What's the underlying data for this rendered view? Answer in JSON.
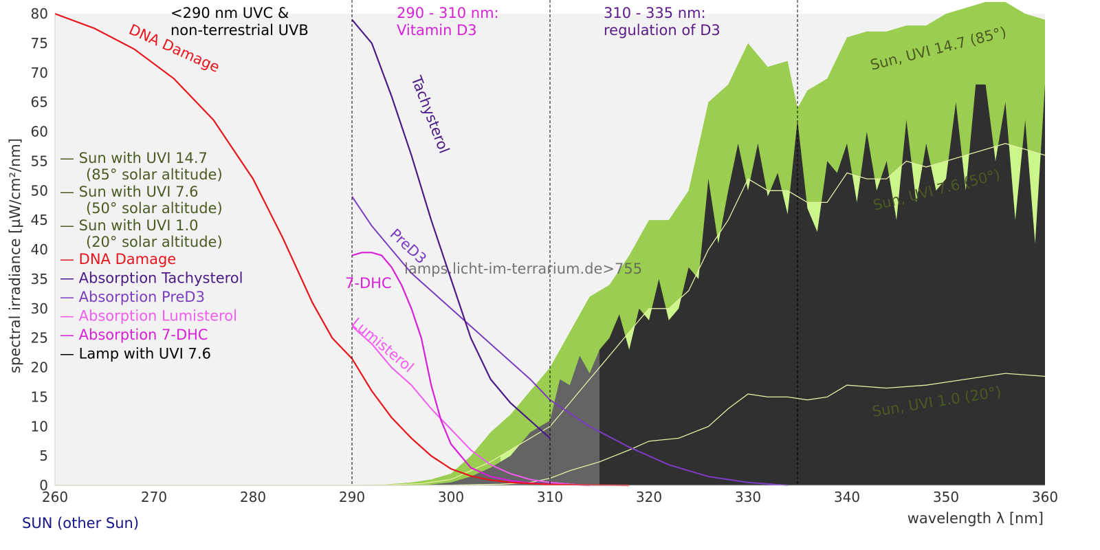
{
  "chart_data": {
    "type": "area",
    "xlabel": "wavelength λ [nm]",
    "ylabel": "spectral irradiance [µW/cm²/nm]",
    "xlim": [
      260,
      360
    ],
    "ylim": [
      0,
      80
    ],
    "x_ticks": [
      260,
      270,
      280,
      290,
      300,
      310,
      320,
      330,
      340,
      350,
      360
    ],
    "y_ticks": [
      0,
      5,
      10,
      15,
      20,
      25,
      30,
      35,
      40,
      45,
      50,
      55,
      60,
      65,
      70,
      75,
      80
    ],
    "grid": "horizontal alternating bands",
    "colors": {
      "sun_high": "#9acd50",
      "sun_mid_fill": "#ccf58c",
      "sun_line": "#e4f0a6",
      "lamp": "#303030",
      "lamp_uvb": "#646464",
      "dna": "#e8141b",
      "tachysterol": "#4a1b86",
      "pred3": "#7b3cc2",
      "lumisterol": "#f25cf0",
      "dhc": "#d81fd8",
      "band_grey": "#f2f2f2",
      "olive_text": "#4a5a22",
      "footer_blue": "#15158a"
    },
    "region_lines": [
      290,
      310,
      335
    ],
    "region_labels": [
      {
        "line1": "<290 nm UVC &",
        "line2": "non-terrestrial UVB",
        "color": "#000000"
      },
      {
        "line1": "290 - 310 nm:",
        "line2": "Vitamin D3",
        "color": "#d622d6"
      },
      {
        "line1": "310 - 335 nm:",
        "line2": "regulation of D3",
        "color": "#5a1a8a"
      }
    ],
    "legend": [
      {
        "text": "— Sun with UVI 14.7",
        "sub": "(85° solar altitude)",
        "color": "#4a5a22"
      },
      {
        "text": "— Sun with UVI 7.6",
        "sub": "(50° solar altitude)",
        "color": "#4a5a22"
      },
      {
        "text": "— Sun with UVI 1.0",
        "sub": "(20° solar altitude)",
        "color": "#4a5a22"
      },
      {
        "text": "— DNA Damage",
        "color": "#e8141b"
      },
      {
        "text": "— Absorption Tachysterol",
        "color": "#4a1b86"
      },
      {
        "text": "— Absorption PreD3",
        "color": "#7b3cc2"
      },
      {
        "text": "— Absorption Lumisterol",
        "color": "#f25cf0"
      },
      {
        "text": "— Absorption 7-DHC",
        "color": "#d81fd8"
      },
      {
        "text": "— Lamp with UVI 7.6",
        "color": "#000000"
      }
    ],
    "curve_labels": {
      "dna": "DNA Damage",
      "tachysterol": "Tachysterol",
      "pred3": "PreD3",
      "dhc": "7-DHC",
      "lumisterol": "Lumisterol",
      "sun_high": "Sun, UVI 14.7 (85°)",
      "sun_mid": "Sun, UVI 7.6 (50°)",
      "sun_low": "Sun, UVI 1.0 (20°)"
    },
    "watermark": "lamps.licht-im-terrarium.de>755",
    "footer": "SUN (other Sun)",
    "series": [
      {
        "key": "sun_high",
        "x": [
          260,
          290,
          293,
          296,
          298,
          300,
          302,
          304,
          306,
          308,
          310,
          312,
          314,
          316,
          318,
          320,
          322,
          324,
          326,
          328,
          330,
          332,
          334,
          335,
          336,
          338,
          340,
          342,
          344,
          346,
          348,
          350,
          352,
          354,
          356,
          358,
          360
        ],
        "y": [
          0,
          0,
          0.1,
          0.5,
          1,
          2,
          5,
          9,
          12,
          16,
          20,
          26,
          32,
          34,
          39,
          45,
          45,
          50,
          65,
          68,
          75,
          71,
          72,
          64,
          67,
          69,
          76,
          77,
          77,
          78,
          78,
          80,
          81,
          82,
          82,
          80,
          79
        ]
      },
      {
        "key": "sun_mid",
        "x": [
          260,
          290,
          294,
          297,
          300,
          302,
          304,
          306,
          308,
          310,
          312,
          314,
          316,
          318,
          320,
          322,
          324,
          326,
          328,
          330,
          332,
          334,
          336,
          338,
          340,
          342,
          344,
          346,
          348,
          350,
          352,
          354,
          356,
          358,
          360
        ],
        "y": [
          0,
          0,
          0.1,
          0.3,
          1,
          2.5,
          4,
          6,
          8,
          10,
          14,
          18,
          22,
          26,
          30,
          30,
          33,
          40,
          45,
          52,
          50,
          50,
          48,
          48,
          53,
          52,
          52,
          55,
          54,
          55,
          56,
          57,
          58,
          57,
          56
        ]
      },
      {
        "key": "sun_low",
        "x": [
          260,
          290,
          295,
          300,
          305,
          308,
          310,
          312,
          315,
          318,
          320,
          323,
          326,
          328,
          330,
          332,
          334,
          336,
          338,
          340,
          344,
          348,
          352,
          356,
          360
        ],
        "y": [
          0,
          0,
          0,
          0.05,
          0.2,
          0.5,
          1.2,
          2.5,
          4,
          6,
          7.5,
          8,
          10,
          13,
          15.5,
          15,
          15,
          14.5,
          15,
          17,
          16.5,
          17,
          18,
          19,
          18.5
        ]
      },
      {
        "key": "lamp",
        "x": [
          290,
          297,
          300,
          302,
          304,
          306,
          307,
          308,
          309,
          310,
          311,
          312,
          313,
          314,
          315,
          316,
          317,
          318,
          319,
          320,
          321,
          322,
          323,
          324,
          325,
          326,
          327,
          328,
          329,
          330,
          331,
          332,
          333,
          334,
          335,
          336,
          337,
          338,
          339,
          340,
          341,
          342,
          343,
          344,
          345,
          346,
          347,
          348,
          349,
          350,
          351,
          352,
          353,
          354,
          355,
          356,
          357,
          358,
          359,
          360
        ],
        "y": [
          0,
          0,
          0.5,
          1.5,
          3,
          5,
          7,
          9,
          10,
          11,
          18,
          17,
          22,
          19,
          23,
          25,
          29,
          23,
          30,
          28,
          35,
          28,
          30,
          37,
          35,
          52,
          41,
          50,
          58,
          50,
          58,
          49,
          53,
          46,
          62,
          47,
          43,
          55,
          53,
          58,
          48,
          60,
          50,
          55,
          45,
          62,
          48,
          58,
          50,
          52,
          65,
          50,
          68,
          68,
          55,
          65,
          45,
          62,
          41,
          68
        ]
      },
      {
        "key": "dna",
        "x": [
          260,
          264,
          268,
          272,
          276,
          280,
          283,
          286,
          288,
          290,
          292,
          294,
          296,
          298,
          300,
          302,
          304,
          306,
          310,
          314,
          318
        ],
        "y": [
          80,
          77.5,
          74,
          69,
          62,
          52,
          42,
          31,
          25,
          21.5,
          16,
          11.5,
          8,
          5,
          2.8,
          1.6,
          0.9,
          0.5,
          0.15,
          0.05,
          0
        ]
      },
      {
        "key": "tachysterol",
        "x": [
          290,
          292,
          294,
          296,
          298,
          300,
          302,
          304,
          306,
          308,
          310
        ],
        "y": [
          79,
          75,
          66,
          56,
          45,
          35,
          25,
          18,
          14,
          11,
          8
        ]
      },
      {
        "key": "pred3",
        "x": [
          290,
          292,
          294,
          296,
          298,
          300,
          302,
          304,
          306,
          308,
          310,
          314,
          318,
          322,
          326,
          330,
          334
        ],
        "y": [
          49,
          44,
          40,
          36,
          33,
          30,
          27,
          24,
          21,
          18,
          14.5,
          10,
          6.5,
          3.5,
          1.5,
          0.5,
          0
        ]
      },
      {
        "key": "dhc",
        "x": [
          290,
          291,
          292,
          293,
          294,
          295,
          296,
          297,
          298,
          299,
          300,
          302,
          304,
          306,
          308,
          310,
          312,
          314
        ],
        "y": [
          39,
          39.5,
          39.5,
          39,
          37,
          34,
          30,
          25,
          17,
          11,
          7,
          3,
          1.5,
          0.8,
          0.4,
          0.2,
          0.1,
          0
        ]
      },
      {
        "key": "lumisterol",
        "x": [
          290,
          292,
          294,
          296,
          298,
          300,
          302,
          304,
          306,
          308,
          310,
          312,
          314
        ],
        "y": [
          27,
          24,
          20,
          17,
          13,
          9.5,
          6,
          3.5,
          2,
          1,
          0.5,
          0.2,
          0
        ]
      }
    ]
  }
}
